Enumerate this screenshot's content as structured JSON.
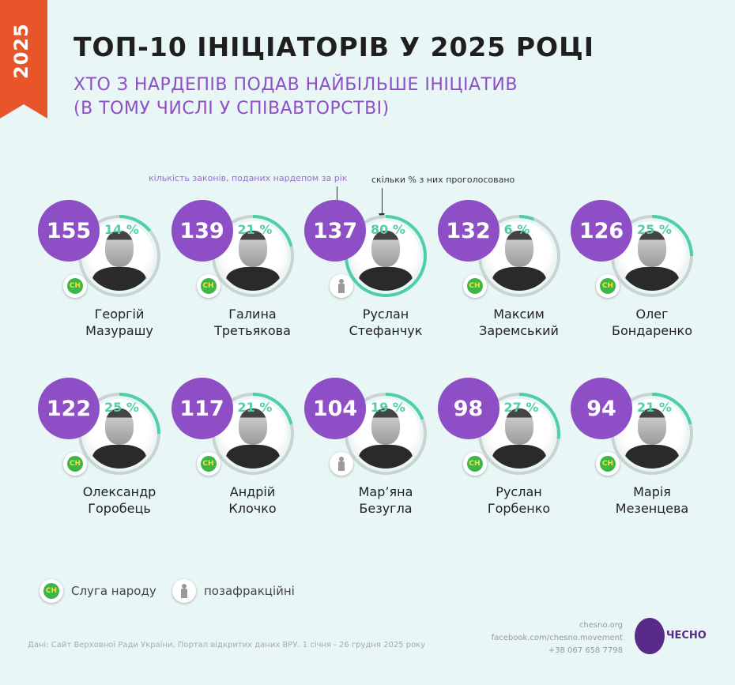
{
  "year_tab": "2025",
  "title": "ТОП-10 ІНІЦІАТОРІВ У 2025 РОЦІ",
  "subtitle": [
    "ХТО З НАРДЕПІВ ПОДАВ НАЙБІЛЬШЕ ІНІЦІАТИВ",
    "(В ТОМУ ЧИСЛІ У СПІВАВТОРСТВІ)"
  ],
  "notes": {
    "count": "кількість законів, поданих нардепом за рік",
    "percent": "скільки % з них проголосовано"
  },
  "colors": {
    "count": "#8e4ec6",
    "percent": "#4fcfa8",
    "ring": "#c9d3d1",
    "year_tab": "#e8552a"
  },
  "mps": [
    {
      "first": "Георгій",
      "last": "Мазурашу",
      "count": "155",
      "percent": 14,
      "percent_label": "14 %",
      "faction": "sluha"
    },
    {
      "first": "Галина",
      "last": "Третьякова",
      "count": "139",
      "percent": 21,
      "percent_label": "21 %",
      "faction": "sluha"
    },
    {
      "first": "Руслан",
      "last": "Стефанчук",
      "count": "137",
      "percent": 80,
      "percent_label": "80 %",
      "faction": "independent"
    },
    {
      "first": "Максим",
      "last": "Заремський",
      "count": "132",
      "percent": 6,
      "percent_label": "6 %",
      "faction": "sluha"
    },
    {
      "first": "Олег",
      "last": "Бондаренко",
      "count": "126",
      "percent": 25,
      "percent_label": "25 %",
      "faction": "sluha"
    },
    {
      "first": "Олександр",
      "last": "Горобець",
      "count": "122",
      "percent": 25,
      "percent_label": "25 %",
      "faction": "sluha"
    },
    {
      "first": "Андрій",
      "last": "Клочко",
      "count": "117",
      "percent": 21,
      "percent_label": "21 %",
      "faction": "sluha"
    },
    {
      "first": "Мар’яна",
      "last": "Безугла",
      "count": "104",
      "percent": 19,
      "percent_label": "19 %",
      "faction": "independent"
    },
    {
      "first": "Руслан",
      "last": "Горбенко",
      "count": "98",
      "percent": 27,
      "percent_label": "27 %",
      "faction": "sluha"
    },
    {
      "first": "Марія",
      "last": "Мезенцева",
      "count": "94",
      "percent": 21,
      "percent_label": "21 %",
      "faction": "sluha"
    }
  ],
  "badge_text": "СН",
  "legend": {
    "sluha": "Слуга народу",
    "independent": "позафракційні"
  },
  "source": "Дані: Сайт Верховної Ради України, Портал відкритих даних ВРУ. 1 січня - 26 грудня 2025 року",
  "contacts": [
    "chesno.org",
    "facebook.com/chesno.movement",
    "+38 067 658 7798"
  ],
  "logo_text": "ЧЕСНО"
}
